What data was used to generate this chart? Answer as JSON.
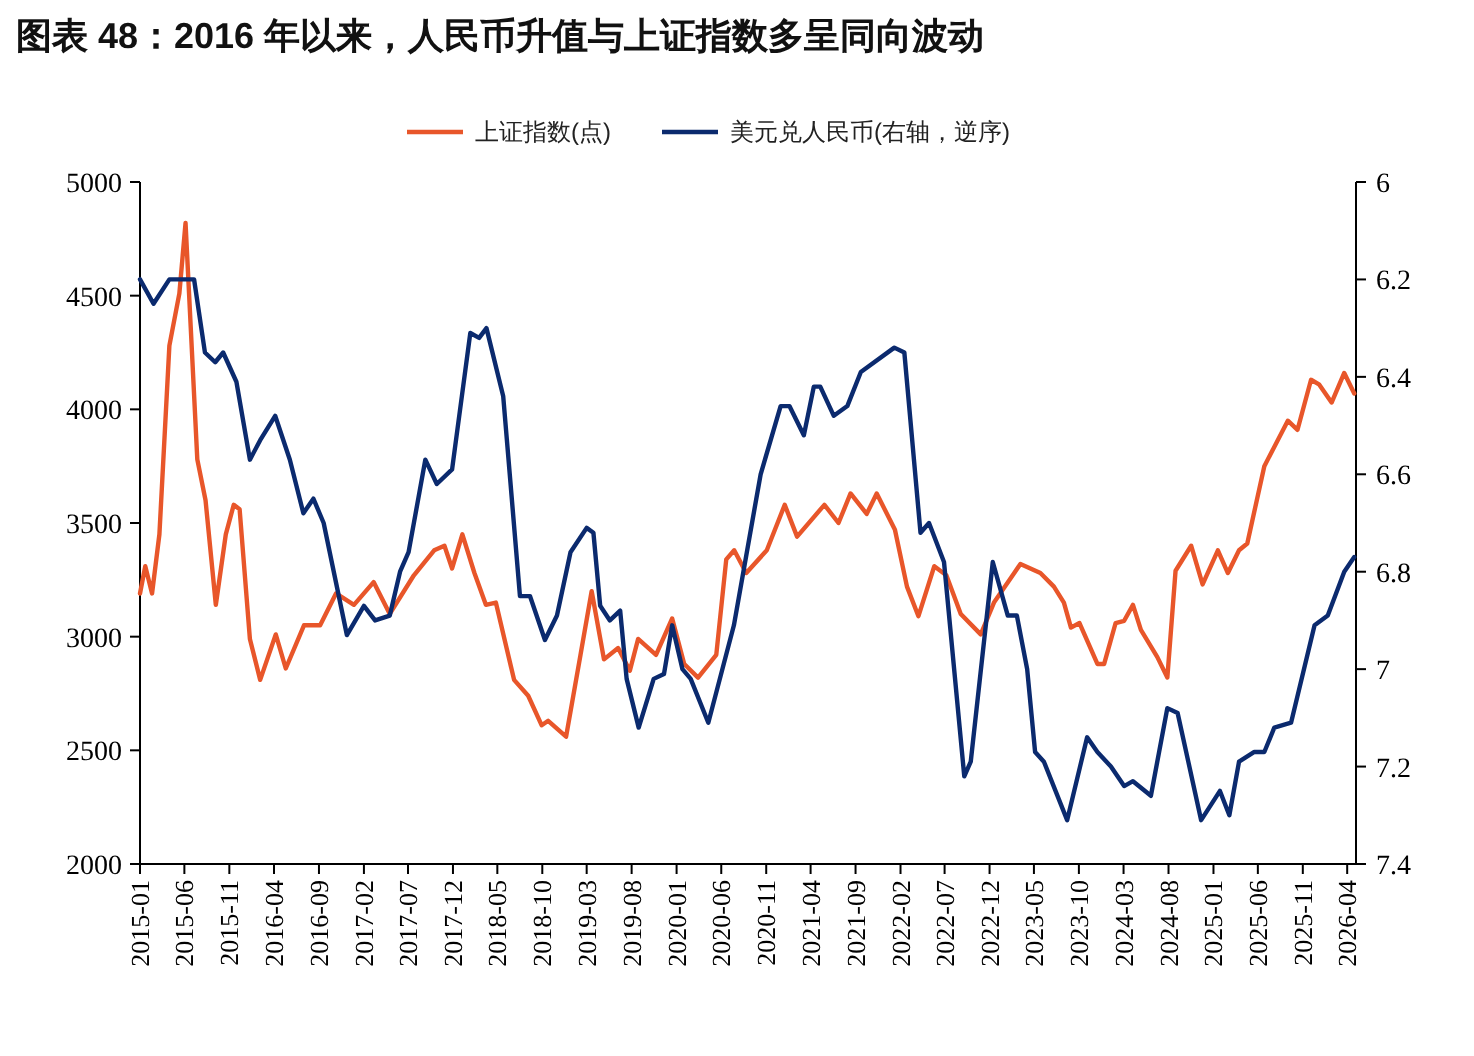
{
  "chart_data": {
    "type": "line",
    "title": "图表 48：2016 年以来，人民币升值与上证指数多呈同向波动",
    "legend": "top",
    "xlim": [
      "2015-01",
      "2026-05"
    ],
    "xticks": [
      "2015-01",
      "2015-06",
      "2015-11",
      "2016-04",
      "2016-09",
      "2017-02",
      "2017-07",
      "2017-12",
      "2018-05",
      "2018-10",
      "2019-03",
      "2019-08",
      "2020-01",
      "2020-06",
      "2020-11",
      "2021-04",
      "2021-09",
      "2022-02",
      "2022-07",
      "2022-12",
      "2023-05",
      "2023-10",
      "2024-03",
      "2024-08",
      "2025-01",
      "2025-06",
      "2025-11",
      "2026-04"
    ],
    "ylim": [
      2000,
      5000
    ],
    "yticks": [
      2000,
      2500,
      3000,
      3500,
      4000,
      4500,
      5000
    ],
    "y2lim": [
      7.4,
      6
    ],
    "y2ticks": [
      6,
      6.2,
      6.4,
      6.6,
      6.8,
      7,
      7.2,
      7.4
    ],
    "series": [
      {
        "name": "上证指数(点)",
        "color": "#e8562a",
        "x": [
          "2015-01-01",
          "2015-01-19",
          "2015-02-11",
          "2015-03-08",
          "2015-04-11",
          "2015-05-15",
          "2015-06-05",
          "2015-07-15",
          "2015-08-12",
          "2015-09-16",
          "2015-10-20",
          "2015-11-16",
          "2015-12-06",
          "2016-01-10",
          "2016-02-14",
          "2016-04-07",
          "2016-05-11",
          "2016-07-12",
          "2016-09-05",
          "2016-10-29",
          "2016-12-29",
          "2017-03-06",
          "2017-04-30",
          "2017-07-21",
          "2017-09-28",
          "2017-11-02",
          "2017-11-28",
          "2018-01-02",
          "2018-02-12",
          "2018-03-23",
          "2018-04-26",
          "2018-06-27",
          "2018-08-14",
          "2018-09-29",
          "2018-10-21",
          "2018-12-21",
          "2019-02-08",
          "2019-03-18",
          "2019-04-29",
          "2019-06-16",
          "2019-07-26",
          "2019-08-23",
          "2019-10-23",
          "2019-12-17",
          "2020-01-27",
          "2020-03-14",
          "2020-05-15",
          "2020-06-18",
          "2020-07-15",
          "2020-08-25",
          "2020-11-03",
          "2021-01-03",
          "2021-02-14",
          "2021-05-18",
          "2021-07-05",
          "2021-08-15",
          "2021-10-09",
          "2021-11-12",
          "2022-01-13",
          "2022-02-23",
          "2022-04-03",
          "2022-05-27",
          "2022-07-07",
          "2022-08-25",
          "2022-11-01",
          "2022-12-16",
          "2023-02-23",
          "2023-03-16",
          "2023-05-23",
          "2023-07-08",
          "2023-08-11",
          "2023-09-04",
          "2023-10-03",
          "2023-12-03",
          "2023-12-26",
          "2024-02-03",
          "2024-03-03",
          "2024-04-02",
          "2024-04-29",
          "2024-06-24",
          "2024-07-28",
          "2024-08-25",
          "2024-10-17",
          "2024-11-25",
          "2025-01-16",
          "2025-02-19",
          "2025-03-29",
          "2025-04-26",
          "2025-06-23",
          "2025-09-11",
          "2025-10-14",
          "2025-11-29",
          "2025-12-26",
          "2026-02-07",
          "2026-03-22",
          "2026-04-25"
        ],
        "values": [
          3190,
          3310,
          3190,
          3450,
          4280,
          4510,
          4820,
          3780,
          3600,
          3140,
          3450,
          3580,
          3560,
          2990,
          2810,
          3010,
          2860,
          3050,
          3050,
          3190,
          3140,
          3240,
          3100,
          3270,
          3380,
          3400,
          3300,
          3450,
          3280,
          3140,
          3150,
          2810,
          2740,
          2610,
          2630,
          2560,
          2920,
          3200,
          2900,
          2950,
          2850,
          2990,
          2920,
          3080,
          2880,
          2820,
          2920,
          3340,
          3380,
          3280,
          3380,
          3580,
          3440,
          3580,
          3500,
          3630,
          3540,
          3630,
          3470,
          3220,
          3090,
          3310,
          3270,
          3100,
          3010,
          3150,
          3280,
          3320,
          3280,
          3220,
          3150,
          3040,
          3060,
          2880,
          2880,
          3060,
          3070,
          3140,
          3030,
          2910,
          2820,
          3290,
          3400,
          3230,
          3380,
          3280,
          3380,
          3410,
          3750,
          3950,
          3910,
          4130,
          4110,
          4030,
          4160,
          4070
        ]
      },
      {
        "name": "美元兑人民币(右轴，逆序)",
        "color": "#0b2a6e",
        "axis": "y2",
        "x": [
          "2015-01-01",
          "2015-02-16",
          "2015-04-11",
          "2015-07-04",
          "2015-08-10",
          "2015-09-14",
          "2015-10-11",
          "2015-11-25",
          "2016-01-10",
          "2016-02-14",
          "2016-04-05",
          "2016-05-25",
          "2016-07-10",
          "2016-08-13",
          "2016-09-17",
          "2016-12-05",
          "2017-02-01",
          "2017-03-11",
          "2017-04-30",
          "2017-06-04",
          "2017-07-03",
          "2017-08-29",
          "2017-10-07",
          "2017-11-28",
          "2018-01-29",
          "2018-02-28",
          "2018-03-25",
          "2018-05-21",
          "2018-07-17",
          "2018-08-20",
          "2018-10-10",
          "2018-11-20",
          "2019-01-05",
          "2019-03-01",
          "2019-03-24",
          "2019-04-16",
          "2019-05-19",
          "2019-06-23",
          "2019-07-15",
          "2019-08-25",
          "2019-10-15",
          "2019-11-19",
          "2019-12-17",
          "2020-01-21",
          "2020-02-18",
          "2020-04-18",
          "2020-07-14",
          "2020-10-13",
          "2020-12-20",
          "2021-01-19",
          "2021-03-09",
          "2021-04-12",
          "2021-05-04",
          "2021-06-19",
          "2021-08-04",
          "2021-09-19",
          "2022-01-11",
          "2022-02-14",
          "2022-04-10",
          "2022-05-09",
          "2022-06-29",
          "2022-09-06",
          "2022-09-28",
          "2022-12-12",
          "2023-02-01",
          "2023-03-04",
          "2023-04-08",
          "2023-05-05",
          "2023-06-04",
          "2023-08-22",
          "2023-10-29",
          "2023-12-03",
          "2024-01-18",
          "2024-03-03",
          "2024-04-02",
          "2024-06-02",
          "2024-07-28",
          "2024-09-01",
          "2024-11-20",
          "2025-01-23",
          "2025-02-24",
          "2025-03-29",
          "2025-05-20",
          "2025-06-23",
          "2025-07-27",
          "2025-09-22",
          "2025-12-11",
          "2026-01-25",
          "2026-03-22",
          "2026-04-25"
        ],
        "values": [
          6.2,
          6.25,
          6.2,
          6.2,
          6.35,
          6.37,
          6.35,
          6.41,
          6.57,
          6.53,
          6.48,
          6.57,
          6.68,
          6.65,
          6.7,
          6.93,
          6.87,
          6.9,
          6.89,
          6.8,
          6.76,
          6.57,
          6.62,
          6.59,
          6.31,
          6.32,
          6.3,
          6.44,
          6.85,
          6.85,
          6.94,
          6.89,
          6.76,
          6.71,
          6.72,
          6.87,
          6.9,
          6.88,
          7.02,
          7.12,
          7.02,
          7.01,
          6.91,
          7.0,
          7.02,
          7.11,
          6.91,
          6.6,
          6.46,
          6.46,
          6.52,
          6.42,
          6.42,
          6.48,
          6.46,
          6.39,
          6.34,
          6.35,
          6.72,
          6.7,
          6.78,
          7.22,
          7.19,
          6.78,
          6.89,
          6.89,
          7.0,
          7.17,
          7.19,
          7.31,
          7.14,
          7.17,
          7.2,
          7.24,
          7.23,
          7.26,
          7.08,
          7.09,
          7.31,
          7.25,
          7.3,
          7.19,
          7.17,
          7.17,
          7.12,
          7.11,
          6.91,
          6.89,
          6.8,
          6.77
        ]
      }
    ]
  }
}
